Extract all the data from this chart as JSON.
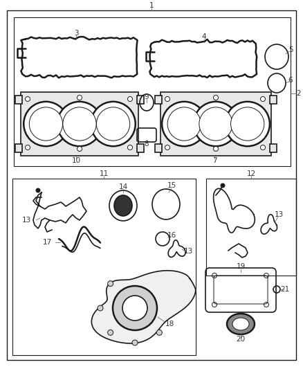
{
  "bg_color": "#ffffff",
  "line_color": "#1a1a1a",
  "label_color": "#444444",
  "fig_width": 4.38,
  "fig_height": 5.33,
  "dpi": 100
}
